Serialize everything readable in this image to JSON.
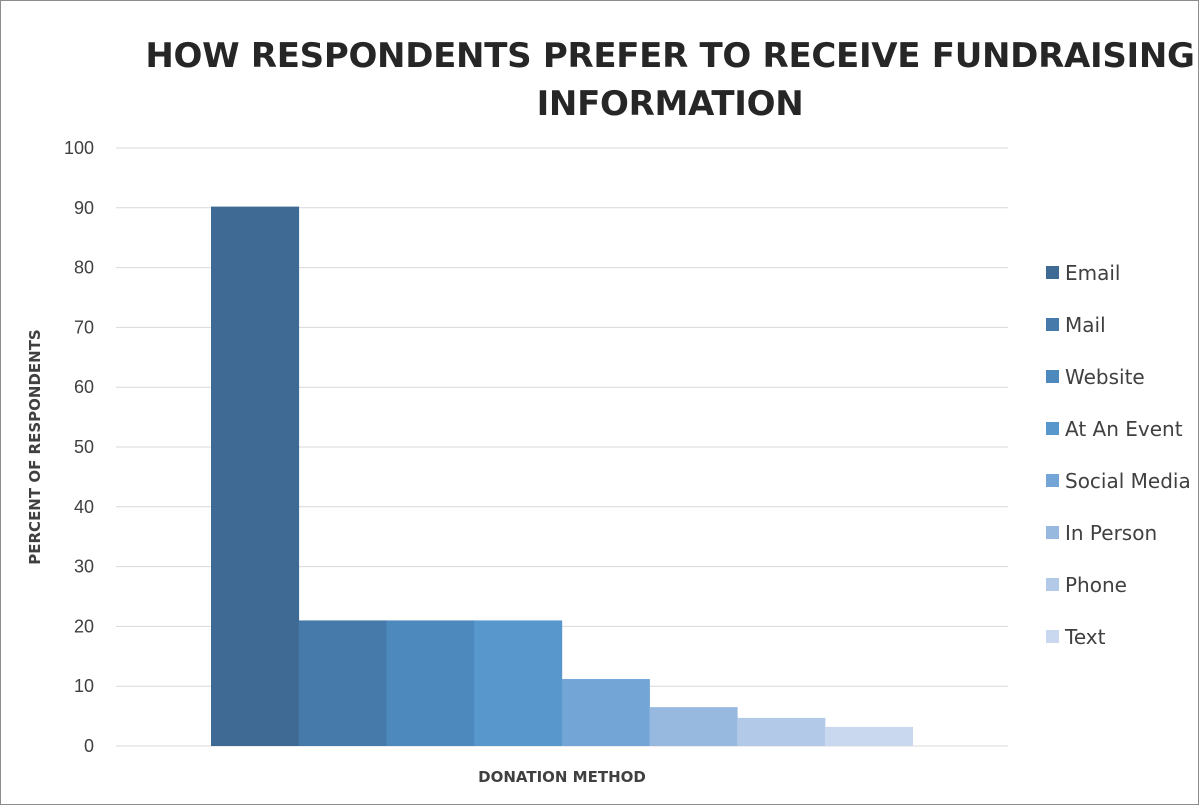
{
  "chart_data": {
    "type": "bar",
    "title": "HOW RESPONDENTS PREFER TO RECEIVE FUNDRAISING INFORMATION",
    "xlabel": "DONATION METHOD",
    "ylabel": "PERCENT OF RESPONDENTS",
    "ylim": [
      0,
      100
    ],
    "yticks": [
      0,
      10,
      20,
      30,
      40,
      50,
      60,
      70,
      80,
      90,
      100
    ],
    "grid": true,
    "legend": "right",
    "series": [
      {
        "name": "Email",
        "value": 90.2,
        "color": "#3f6a94"
      },
      {
        "name": "Mail",
        "value": 21,
        "color": "#457aaa"
      },
      {
        "name": "Website",
        "value": 21,
        "color": "#4e89bd"
      },
      {
        "name": "At An Event",
        "value": 21,
        "color": "#5797cc"
      },
      {
        "name": "Social Media",
        "value": 11.2,
        "color": "#73a6d7"
      },
      {
        "name": "In Person",
        "value": 6.5,
        "color": "#97b9e0"
      },
      {
        "name": "Phone",
        "value": 4.7,
        "color": "#b3c9e8"
      },
      {
        "name": "Text",
        "value": 3.2,
        "color": "#c9d8ee"
      }
    ]
  }
}
